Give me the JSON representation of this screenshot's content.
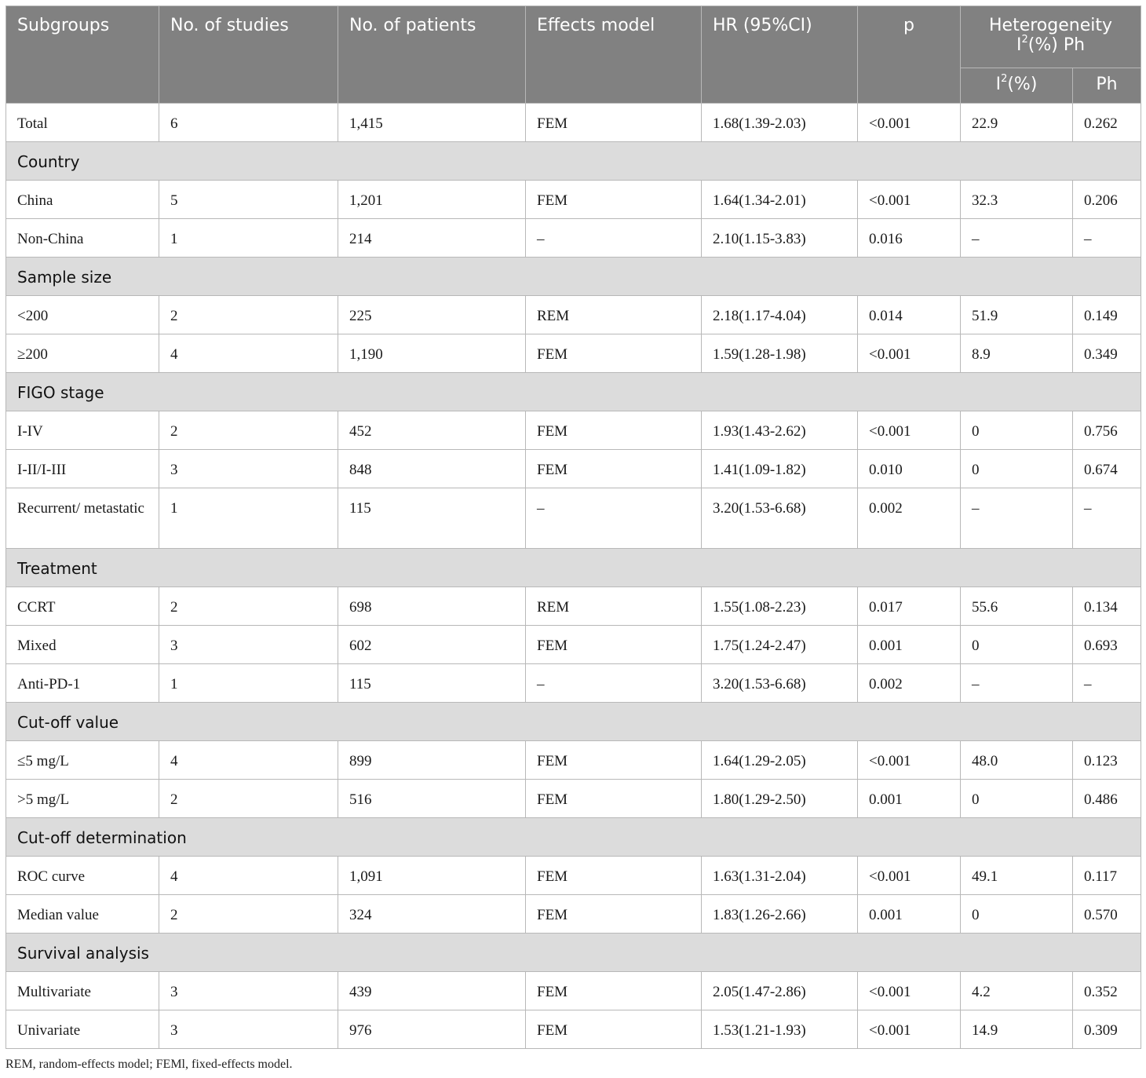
{
  "headers": {
    "subgroups": "Subgroups",
    "studies": "No. of studies",
    "patients": "No. of patients",
    "model": "Effects model",
    "hr": "HR (95%CI)",
    "p": "p",
    "heterogeneity_pre": "Heterogeneity",
    "heterogeneity_i": "I",
    "heterogeneity_sup": "2",
    "heterogeneity_post": "(%) Ph",
    "i2_pre": "I",
    "i2_sup": "2",
    "i2_post": "(%)",
    "ph": "Ph"
  },
  "rows": [
    {
      "type": "data",
      "cells": [
        "Total",
        "6",
        "1,415",
        "FEM",
        "1.68(1.39-2.03)",
        "<0.001",
        "22.9",
        "0.262"
      ]
    },
    {
      "type": "group",
      "label": "Country"
    },
    {
      "type": "data",
      "cells": [
        "China",
        "5",
        "1,201",
        "FEM",
        "1.64(1.34-2.01)",
        "<0.001",
        "32.3",
        "0.206"
      ]
    },
    {
      "type": "data",
      "cells": [
        "Non-China",
        "1",
        "214",
        "–",
        "2.10(1.15-3.83)",
        "0.016",
        "–",
        "–"
      ]
    },
    {
      "type": "group",
      "label": "Sample size"
    },
    {
      "type": "data",
      "cells": [
        "<200",
        "2",
        "225",
        "REM",
        "2.18(1.17-4.04)",
        "0.014",
        "51.9",
        "0.149"
      ]
    },
    {
      "type": "data",
      "cells": [
        "≥200",
        "4",
        "1,190",
        "FEM",
        "1.59(1.28-1.98)",
        "<0.001",
        "8.9",
        "0.349"
      ]
    },
    {
      "type": "group",
      "label": "FIGO stage"
    },
    {
      "type": "data",
      "cells": [
        "I-IV",
        "2",
        "452",
        "FEM",
        "1.93(1.43-2.62)",
        "<0.001",
        "0",
        "0.756"
      ]
    },
    {
      "type": "data",
      "cells": [
        "I-II/I-III",
        "3",
        "848",
        "FEM",
        "1.41(1.09-1.82)",
        "0.010",
        "0",
        "0.674"
      ]
    },
    {
      "type": "data",
      "tall": true,
      "cells": [
        "Recurrent/ metastatic",
        "1",
        "115",
        "–",
        "3.20(1.53-6.68)",
        "0.002",
        "–",
        "–"
      ]
    },
    {
      "type": "group",
      "label": "Treatment"
    },
    {
      "type": "data",
      "cells": [
        "CCRT",
        "2",
        "698",
        "REM",
        "1.55(1.08-2.23)",
        "0.017",
        "55.6",
        "0.134"
      ]
    },
    {
      "type": "data",
      "cells": [
        "Mixed",
        "3",
        "602",
        "FEM",
        "1.75(1.24-2.47)",
        "0.001",
        "0",
        "0.693"
      ]
    },
    {
      "type": "data",
      "cells": [
        "Anti-PD-1",
        "1",
        "115",
        "–",
        "3.20(1.53-6.68)",
        "0.002",
        "–",
        "–"
      ]
    },
    {
      "type": "group",
      "label": "Cut-off value"
    },
    {
      "type": "data",
      "cells": [
        "≤5 mg/L",
        "4",
        "899",
        "FEM",
        "1.64(1.29-2.05)",
        "<0.001",
        "48.0",
        "0.123"
      ]
    },
    {
      "type": "data",
      "cells": [
        ">5 mg/L",
        "2",
        "516",
        "FEM",
        "1.80(1.29-2.50)",
        "0.001",
        "0",
        "0.486"
      ]
    },
    {
      "type": "group",
      "label": "Cut-off determination"
    },
    {
      "type": "data",
      "cells": [
        "ROC curve",
        "4",
        "1,091",
        "FEM",
        "1.63(1.31-2.04)",
        "<0.001",
        "49.1",
        "0.117"
      ]
    },
    {
      "type": "data",
      "cells": [
        "Median value",
        "2",
        "324",
        "FEM",
        "1.83(1.26-2.66)",
        "0.001",
        "0",
        "0.570"
      ]
    },
    {
      "type": "group",
      "label": "Survival analysis"
    },
    {
      "type": "data",
      "cells": [
        "Multivariate",
        "3",
        "439",
        "FEM",
        "2.05(1.47-2.86)",
        "<0.001",
        "4.2",
        "0.352"
      ]
    },
    {
      "type": "data",
      "cells": [
        "Univariate",
        "3",
        "976",
        "FEM",
        "1.53(1.21-1.93)",
        "<0.001",
        "14.9",
        "0.309"
      ]
    }
  ],
  "footnote": "REM, random-effects model; FEMl, fixed-effects model."
}
